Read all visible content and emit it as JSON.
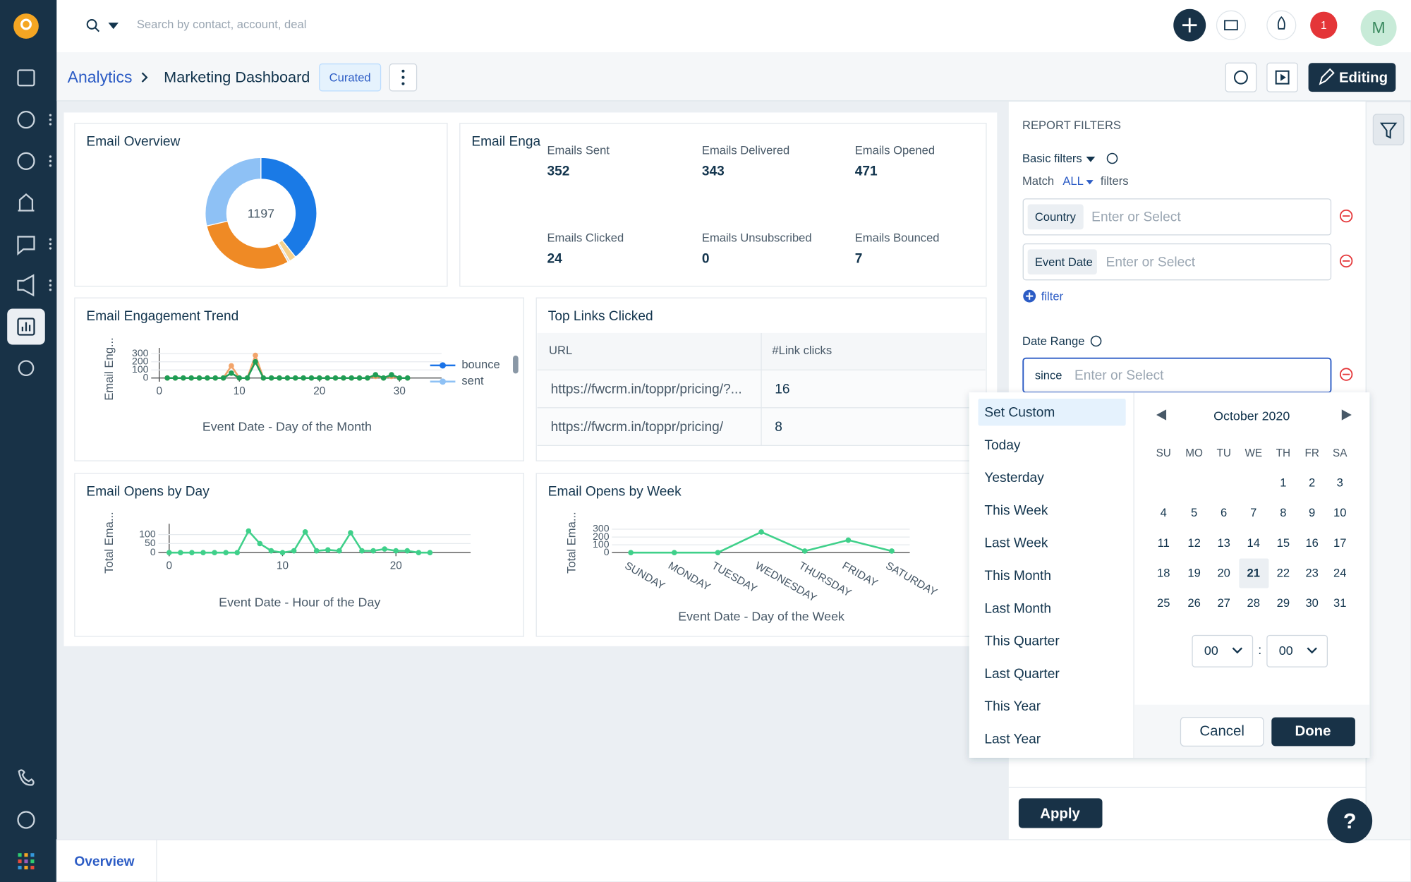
{
  "search_placeholder": "Search by contact, account, deal",
  "notifications": 1,
  "avatar": "M",
  "breadcrumb": {
    "root": "Analytics",
    "title": "Marketing Dashboard",
    "badge": "Curated"
  },
  "editing_button": "Editing",
  "widgets": {
    "email_overview": {
      "title": "Email Overview",
      "total": 1197,
      "colors": [
        "#ef8a25",
        "#8ec1f5",
        "#1a7ae6",
        "#f6d18c",
        "#cccccc",
        "#d9d9d9"
      ]
    },
    "email_engagement": {
      "title": "Email Enga",
      "metrics": [
        {
          "label": "Emails Sent",
          "value": 352
        },
        {
          "label": "Emails Delivered",
          "value": 343
        },
        {
          "label": "Emails Opened",
          "value": 471
        },
        {
          "label": "Emails Clicked",
          "value": 24
        },
        {
          "label": "Emails Unsubscribed",
          "value": 0
        },
        {
          "label": "Emails Bounced",
          "value": 7
        }
      ]
    },
    "engagement_trend": {
      "type": "line",
      "title": "Email Engagement Trend",
      "y_label": "Email Eng...",
      "x_label": "Event Date - Day of the Month",
      "x": [
        1,
        2,
        3,
        4,
        5,
        6,
        7,
        8,
        9,
        10,
        11,
        12,
        13,
        14,
        15,
        16,
        17,
        18,
        19,
        20,
        21,
        22,
        23,
        24,
        25,
        26,
        27,
        28,
        29,
        30,
        31
      ],
      "xlim": [
        0,
        33
      ],
      "xticks": [
        0,
        10,
        20,
        30
      ],
      "ylim": [
        0,
        350
      ],
      "yticks": [
        0,
        100,
        200,
        300
      ],
      "series": [
        {
          "color": "#f2a46a",
          "values": [
            0,
            0,
            0,
            0,
            0,
            0,
            0,
            0,
            150,
            0,
            0,
            280,
            0,
            0,
            0,
            0,
            0,
            0,
            0,
            0,
            0,
            0,
            0,
            0,
            0,
            0,
            20,
            0,
            20,
            0,
            0
          ]
        },
        {
          "color": "#1f9d55",
          "values": [
            0,
            0,
            0,
            0,
            0,
            0,
            0,
            0,
            60,
            0,
            0,
            200,
            0,
            0,
            0,
            0,
            0,
            0,
            0,
            0,
            0,
            0,
            0,
            0,
            0,
            0,
            40,
            0,
            40,
            0,
            0
          ]
        }
      ],
      "legend": [
        {
          "name": "bounce",
          "color": "#1a73e8"
        },
        {
          "name": "sent",
          "color": "#8ec1f5"
        }
      ]
    },
    "top_links": {
      "title": "Top Links Clicked",
      "columns": [
        "URL",
        "#Link clicks"
      ],
      "rows": [
        [
          "https://fwcrm.in/toppr/pricing/?...",
          16
        ],
        [
          "https://fwcrm.in/toppr/pricing/",
          8
        ]
      ]
    },
    "opens_by_day": {
      "type": "line",
      "title": "Email Opens by Day",
      "y_label": "Total Ema...",
      "x_label": "Event Date - Hour of the Day",
      "x": [
        0,
        1,
        2,
        3,
        4,
        5,
        6,
        7,
        8,
        9,
        10,
        11,
        12,
        13,
        14,
        15,
        16,
        17,
        18,
        19,
        20,
        21,
        22,
        23
      ],
      "xlim": [
        0,
        25
      ],
      "xticks": [
        0,
        10,
        20
      ],
      "ylim": [
        0,
        150
      ],
      "yticks": [
        0,
        50,
        100
      ],
      "series": [
        {
          "color": "#3fd08a",
          "values": [
            0,
            0,
            0,
            0,
            0,
            0,
            0,
            120,
            50,
            10,
            0,
            10,
            115,
            10,
            15,
            10,
            110,
            10,
            10,
            20,
            10,
            10,
            0,
            0
          ]
        }
      ]
    },
    "opens_by_week": {
      "type": "line",
      "title": "Email Opens by Week",
      "y_label": "Total Ema...",
      "x_label": "Event Date - Day of the Week",
      "categories": [
        "SUNDAY",
        "MONDAY",
        "TUESDAY",
        "WEDNESDAY",
        "THURSDAY",
        "FRIDAY",
        "SATURDAY"
      ],
      "ylim": [
        0,
        350
      ],
      "yticks": [
        0,
        100,
        200,
        300
      ],
      "series": [
        {
          "color": "#3fd08a",
          "values": [
            0,
            0,
            0,
            265,
            20,
            160,
            20
          ]
        }
      ]
    }
  },
  "report_filters": {
    "heading": "REPORT FILTERS",
    "basic": "Basic filters",
    "match": "Match",
    "match_mode": "ALL",
    "match_suffix": "filters",
    "filters": [
      {
        "label": "Country",
        "placeholder": "Enter or Select"
      },
      {
        "label": "Event Date",
        "placeholder": "Enter or Select"
      }
    ],
    "add_filter": "filter",
    "date_range": {
      "label": "Date Range",
      "prefix": "since",
      "placeholder": "Enter or Select"
    },
    "apply": "Apply"
  },
  "date_picker": {
    "presets": [
      "Set Custom",
      "Today",
      "Yesterday",
      "This Week",
      "Last Week",
      "This Month",
      "Last Month",
      "This Quarter",
      "Last Quarter",
      "This Year",
      "Last Year"
    ],
    "month": "October 2020",
    "weekdays": [
      "SU",
      "MO",
      "TU",
      "WE",
      "TH",
      "FR",
      "SA"
    ],
    "weeks": [
      [
        null,
        null,
        null,
        null,
        1,
        2,
        3
      ],
      [
        4,
        5,
        6,
        7,
        8,
        9,
        10
      ],
      [
        11,
        12,
        13,
        14,
        15,
        16,
        17
      ],
      [
        18,
        19,
        20,
        21,
        22,
        23,
        24
      ],
      [
        25,
        26,
        27,
        28,
        29,
        30,
        31
      ]
    ],
    "selected_day": 21,
    "hour": "00",
    "time_separator": ":",
    "minute": "00",
    "cancel": "Cancel",
    "done": "Done"
  },
  "tabs": [
    "Overview"
  ]
}
